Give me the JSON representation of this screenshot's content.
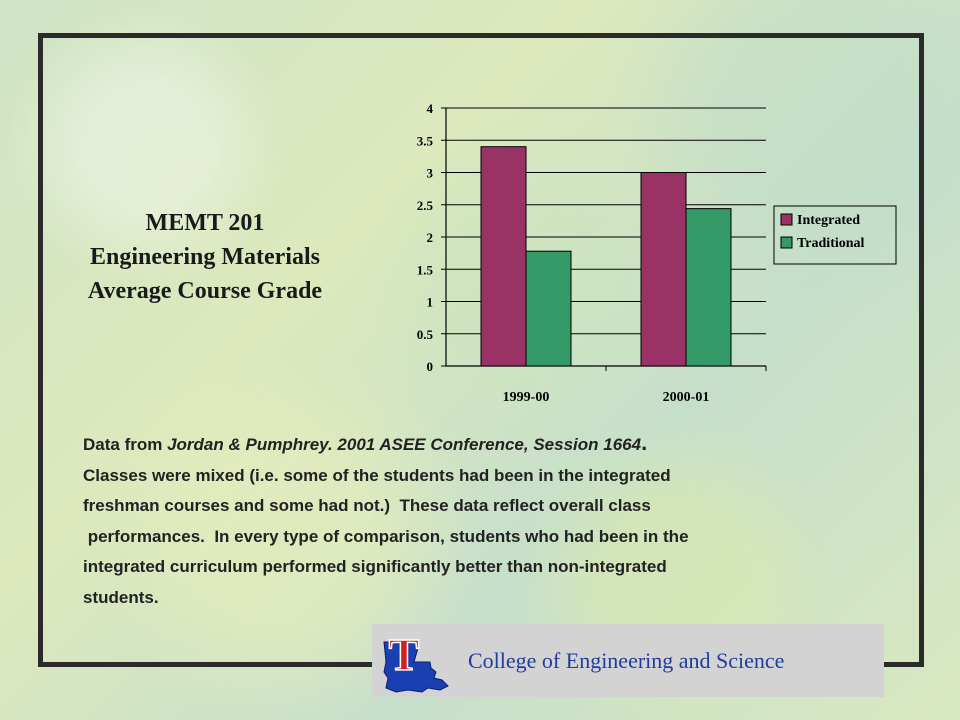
{
  "slide": {
    "title_lines": [
      "MEMT 201",
      "Engineering Materials",
      "Average Course Grade"
    ],
    "source_prefix": "Data from ",
    "source_citation": "Jordan & Pumphrey. 2001 ASEE Conference, Session 1664",
    "source_suffix": ".",
    "body_lines": [
      "Classes were mixed (i.e. some of the students had been in the integrated",
      "freshman courses and some had not.)  These data reflect overall class",
      " performances.  In every type of comparison, students who had been in the",
      "integrated curriculum performed significantly better than non-integrated",
      "students."
    ],
    "footer_text": "College of Engineering and Science",
    "logo_letter": "T"
  },
  "colors": {
    "integrated": "#993366",
    "traditional": "#339966",
    "footer_text": "#1f3d9e",
    "logo_red": "#d62020",
    "logo_blue": "#1a3fb0"
  },
  "chart_data": {
    "type": "bar",
    "categories": [
      "1999-00",
      "2000-01"
    ],
    "series": [
      {
        "name": "Integrated",
        "values": [
          3.4,
          3.0
        ]
      },
      {
        "name": "Traditional",
        "values": [
          1.78,
          2.44
        ]
      }
    ],
    "ylim": [
      0,
      4
    ],
    "yticks": [
      0,
      0.5,
      1,
      1.5,
      2,
      2.5,
      3,
      3.5,
      4
    ],
    "ytick_labels": [
      "0",
      "0.5",
      "1",
      "1.5",
      "2",
      "2.5",
      "3",
      "3.5",
      "4"
    ],
    "grid": true,
    "legend": "right",
    "title": "",
    "xlabel": "",
    "ylabel": ""
  }
}
